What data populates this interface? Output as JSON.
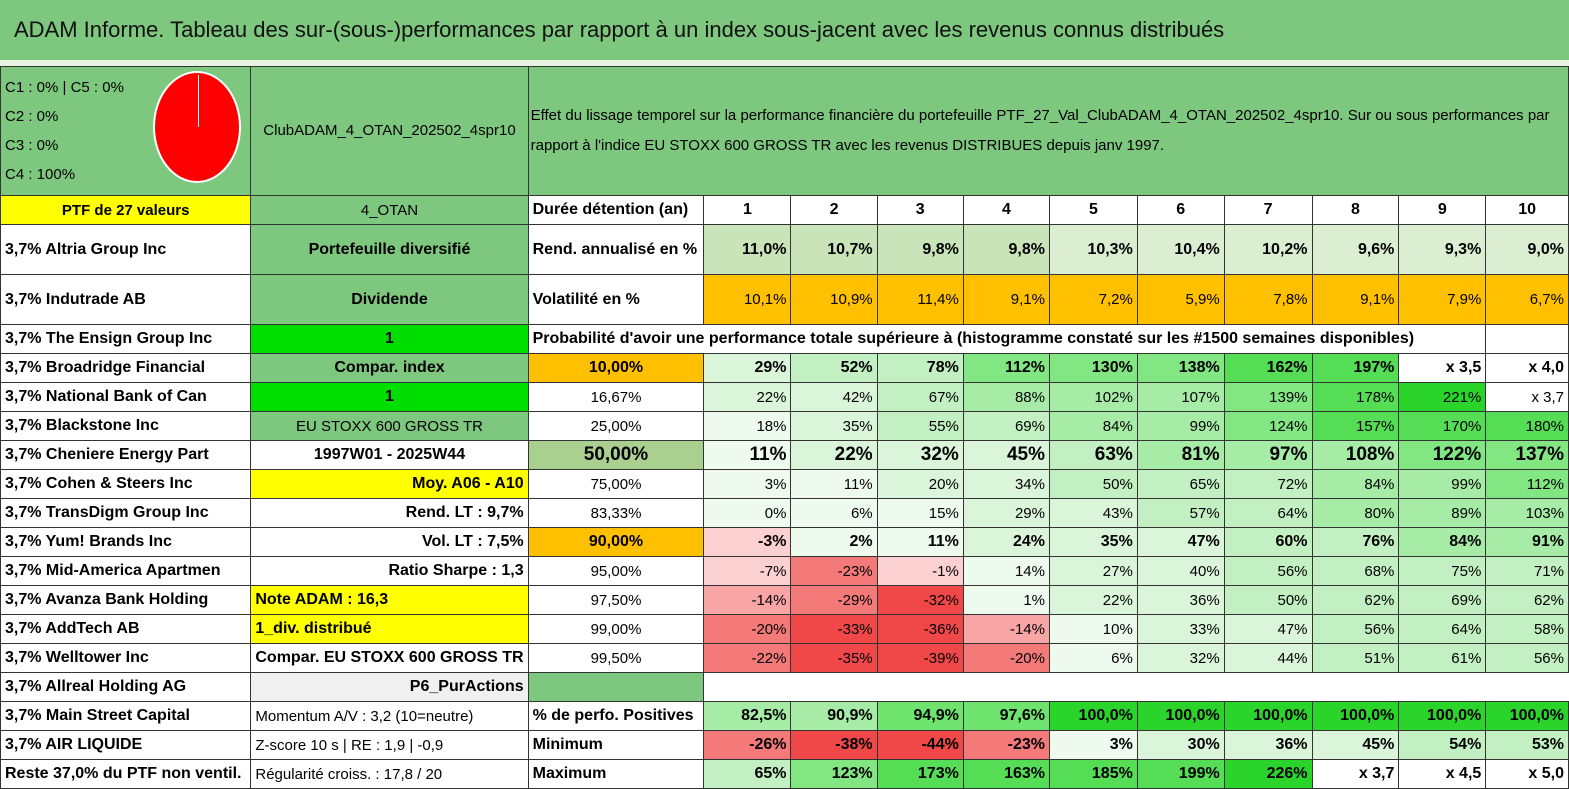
{
  "title": "ADAM Informe. Tableau des sur-(sous-)performances par rapport à un index sous-jacent avec les revenus connus distribués",
  "legend": [
    "C1 : 0% | C5 : 0%",
    "C2 : 0%",
    "C3 : 0%",
    "C4 : 100%"
  ],
  "portfolio_code": "ClubADAM_4_OTAN_202502_4spr10",
  "description": "Effet du lissage temporel sur la performance financière du portefeuille PTF_27_Val_ClubADAM_4_OTAN_202502_4spr10. Sur ou sous performances par rapport à l'indice EU STOXX 600 GROSS TR avec les revenus DISTRIBUES depuis janv 1997.",
  "ptf_label": "PTF de 27 valeurs",
  "code_short": "4_OTAN",
  "duration_label": "Durée détention (an)",
  "durations": [
    "1",
    "2",
    "3",
    "4",
    "5",
    "6",
    "7",
    "8",
    "9",
    "10"
  ],
  "rend_label": "Rend. annualisé en %",
  "rend_values": [
    "11,0%",
    "10,7%",
    "9,8%",
    "9,8%",
    "10,3%",
    "10,4%",
    "10,2%",
    "9,6%",
    "9,3%",
    "9,0%"
  ],
  "vol_label": "Volatilité en %",
  "vol_values": [
    "10,1%",
    "10,9%",
    "11,4%",
    "9,1%",
    "7,2%",
    "5,9%",
    "7,8%",
    "9,1%",
    "7,9%",
    "6,7%"
  ],
  "prob_title": "Probabilité d'avoir une performance totale supérieure à (histogramme constaté sur les #1500 semaines disponibles)",
  "holdings": [
    "3,7% Altria Group Inc",
    "3,7% Indutrade AB",
    "3,7% The Ensign Group Inc",
    "3,7% Broadridge Financial",
    "3,7% National Bank of Can",
    "3,7% Blackstone Inc",
    "3,7% Cheniere Energy Part",
    "3,7% Cohen & Steers Inc",
    "3,7% TransDigm Group Inc",
    "3,7% Yum! Brands Inc",
    "3,7% Mid-America Apartmen",
    "3,7% Avanza Bank Holding",
    "3,7% AddTech AB",
    "3,7% Welltower Inc",
    "3,7% Allreal Holding AG",
    "3,7% Main Street Capital",
    "3,7% AIR LIQUIDE",
    "Reste 37,0% du PTF non ventil."
  ],
  "info": [
    "Portefeuille diversifié",
    "Dividende",
    "1",
    "Compar. index",
    "1",
    "EU STOXX 600 GROSS TR",
    "1997W01 - 2025W44",
    "Moy. A06 - A10",
    "Rend. LT : 9,7%",
    "Vol. LT : 7,5%",
    "Ratio Sharpe : 1,3",
    "Note ADAM : 16,3",
    "1_div. distribué",
    "Compar. EU STOXX 600 GROSS TR",
    "P6_PurActions",
    "Momentum A/V : 3,2 (10=neutre)",
    "Z-score 10 s | RE : 1,9 | -0,9",
    "Régularité croiss. : 17,8 / 20"
  ],
  "prob_rows": [
    {
      "threshold": "10,00%",
      "values": [
        "29%",
        "52%",
        "78%",
        "112%",
        "130%",
        "138%",
        "162%",
        "197%",
        "x 3,5",
        "x 4,0"
      ]
    },
    {
      "threshold": "16,67%",
      "values": [
        "22%",
        "42%",
        "67%",
        "88%",
        "102%",
        "107%",
        "139%",
        "178%",
        "221%",
        "x 3,7"
      ]
    },
    {
      "threshold": "25,00%",
      "values": [
        "18%",
        "35%",
        "55%",
        "69%",
        "84%",
        "99%",
        "124%",
        "157%",
        "170%",
        "180%"
      ]
    },
    {
      "threshold": "50,00%",
      "values": [
        "11%",
        "22%",
        "32%",
        "45%",
        "63%",
        "81%",
        "97%",
        "108%",
        "122%",
        "137%"
      ]
    },
    {
      "threshold": "75,00%",
      "values": [
        "3%",
        "11%",
        "20%",
        "34%",
        "50%",
        "65%",
        "72%",
        "84%",
        "99%",
        "112%"
      ]
    },
    {
      "threshold": "83,33%",
      "values": [
        "0%",
        "6%",
        "15%",
        "29%",
        "43%",
        "57%",
        "64%",
        "80%",
        "89%",
        "103%"
      ]
    },
    {
      "threshold": "90,00%",
      "values": [
        "-3%",
        "2%",
        "11%",
        "24%",
        "35%",
        "47%",
        "60%",
        "76%",
        "84%",
        "91%"
      ]
    },
    {
      "threshold": "95,00%",
      "values": [
        "-7%",
        "-23%",
        "-1%",
        "14%",
        "27%",
        "40%",
        "56%",
        "68%",
        "75%",
        "71%"
      ]
    },
    {
      "threshold": "97,50%",
      "values": [
        "-14%",
        "-29%",
        "-32%",
        "1%",
        "22%",
        "36%",
        "50%",
        "62%",
        "69%",
        "62%"
      ]
    },
    {
      "threshold": "99,00%",
      "values": [
        "-20%",
        "-33%",
        "-36%",
        "-14%",
        "10%",
        "33%",
        "47%",
        "56%",
        "64%",
        "58%"
      ]
    },
    {
      "threshold": "99,50%",
      "values": [
        "-22%",
        "-35%",
        "-39%",
        "-20%",
        "6%",
        "32%",
        "44%",
        "51%",
        "61%",
        "56%"
      ]
    }
  ],
  "stats": [
    {
      "label": "% de perfo. Positives",
      "values": [
        "82,5%",
        "90,9%",
        "94,9%",
        "97,6%",
        "100,0%",
        "100,0%",
        "100,0%",
        "100,0%",
        "100,0%",
        "100,0%"
      ]
    },
    {
      "label": "Minimum",
      "values": [
        "-26%",
        "-38%",
        "-44%",
        "-23%",
        "3%",
        "30%",
        "36%",
        "45%",
        "54%",
        "53%"
      ]
    },
    {
      "label": "Maximum",
      "values": [
        "65%",
        "123%",
        "173%",
        "163%",
        "185%",
        "199%",
        "226%",
        "x 3,7",
        "x 4,5",
        "x 5,0"
      ]
    }
  ],
  "colors": {
    "title_bg": "#7ec77e",
    "yellow": "#ffff00",
    "orange": "#ffc000",
    "bright_green": "#00dd00",
    "pie_red": "#ff0000"
  }
}
